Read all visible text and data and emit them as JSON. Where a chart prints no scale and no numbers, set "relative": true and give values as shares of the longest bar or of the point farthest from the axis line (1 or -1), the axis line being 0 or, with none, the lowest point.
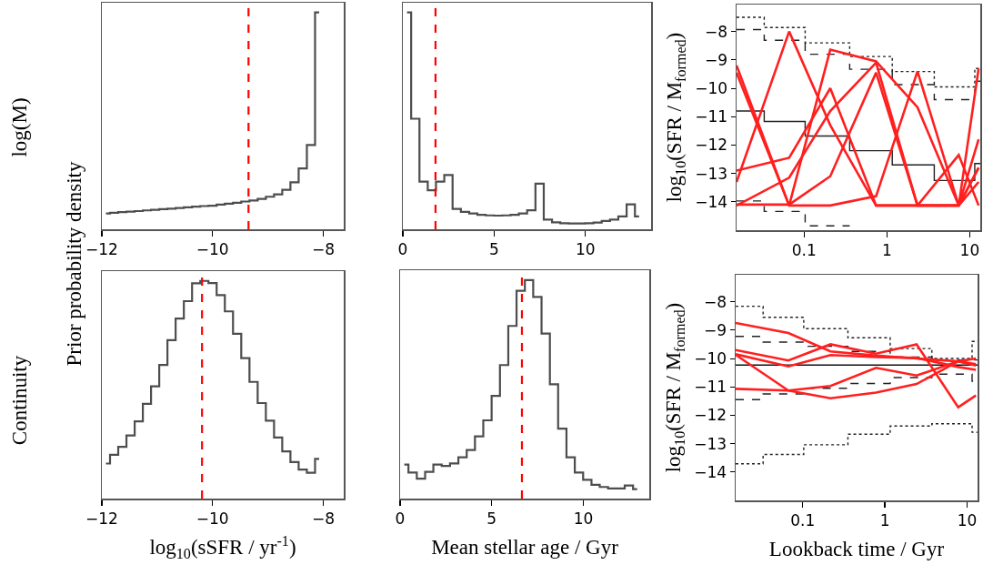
{
  "chart_data": [
    {
      "type": "step",
      "relative": true,
      "color": "#4d4d4d",
      "xlim": [
        -12,
        -7.63
      ],
      "xticks": [
        -12,
        -10,
        -8
      ],
      "x": [
        -11.926,
        -11.778,
        -11.63,
        -11.481,
        -11.333,
        -11.185,
        -11.037,
        -10.889,
        -10.741,
        -10.593,
        -10.444,
        -10.296,
        -10.148,
        -10,
        -9.852,
        -9.704,
        -9.556,
        -9.407,
        -9.259,
        -9.111,
        -8.963,
        -8.815,
        -8.667,
        -8.519,
        -8.37,
        -8.222,
        -8.074
      ],
      "values": [
        0.073,
        0.076,
        0.079,
        0.081,
        0.084,
        0.087,
        0.09,
        0.093,
        0.095,
        0.098,
        0.101,
        0.104,
        0.107,
        0.109,
        0.114,
        0.118,
        0.122,
        0.128,
        0.133,
        0.14,
        0.15,
        0.161,
        0.182,
        0.217,
        0.281,
        0.389,
        1
      ],
      "ref_lines": [
        {
          "axis": "x",
          "value": -9.35,
          "color": "#ff0000",
          "line_style": "dashed"
        }
      ],
      "annotations": [
        "log(M)",
        "Prior probability density"
      ]
    },
    {
      "type": "step",
      "relative": true,
      "color": "#4d4d4d",
      "xlim": [
        0,
        13.6
      ],
      "xticks": [
        0,
        5,
        10
      ],
      "x": [
        0.23,
        0.68,
        1.14,
        1.59,
        2.04,
        2.5,
        2.95,
        3.41,
        3.86,
        4.31,
        4.77,
        5.22,
        5.68,
        6.13,
        6.58,
        7.04,
        7.49,
        7.95,
        8.4,
        8.85,
        9.31,
        9.76,
        10.22,
        10.67,
        11.12,
        11.58,
        12.03,
        12.49,
        12.94
      ],
      "values": [
        1,
        0.51,
        0.22,
        0.18,
        0.22,
        0.25,
        0.094,
        0.08,
        0.073,
        0.067,
        0.064,
        0.063,
        0.064,
        0.067,
        0.073,
        0.088,
        0.21,
        0.045,
        0.032,
        0.028,
        0.027,
        0.027,
        0.028,
        0.031,
        0.038,
        0.045,
        0.059,
        0.115,
        0.059
      ],
      "ref_lines": [
        {
          "axis": "x",
          "value": 1.79,
          "color": "#ff0000",
          "line_style": "dashed"
        }
      ]
    },
    {
      "type": "line",
      "log": "x",
      "xlim": [
        0.0153,
        13.4
      ],
      "ylim": [
        -15,
        -7.05
      ],
      "xticks": [
        0.1,
        1,
        10
      ],
      "yticks": [
        -8,
        -9,
        -10,
        -11,
        -12,
        -13,
        -14
      ],
      "ylabel": "log$_{10}$(SFR / M$_{formed}$)",
      "series": [
        {
          "type": "step",
          "color": "#222222",
          "line_style": "solid",
          "x": [
            0.0153,
            0.033,
            0.103,
            0.355,
            1.16,
            3.73,
            11.5,
            13.4
          ],
          "values": [
            -10.8,
            -11.17,
            -11.68,
            -12.2,
            -12.7,
            -13.25,
            -12.65,
            -12.65
          ]
        },
        {
          "type": "step",
          "color": "#222222",
          "line_style": "dashed",
          "x": [
            0.0153,
            0.033,
            0.103,
            0.355,
            1.16,
            3.73,
            11.5,
            13.4
          ],
          "values": [
            -7.93,
            -8.31,
            -8.8,
            -9.33,
            -9.87,
            -10.4,
            -9.75,
            -9.75
          ]
        },
        {
          "type": "step",
          "color": "#222222",
          "line_style": "dashed",
          "x": [
            0.0153,
            0.033,
            0.103,
            0.355
          ],
          "values": [
            -13.97,
            -14.34,
            -14.85,
            -14.85
          ]
        },
        {
          "type": "step",
          "color": "#222222",
          "line_style": "dotted",
          "x": [
            0.0153,
            0.033,
            0.103,
            0.355,
            1.16,
            3.73,
            11.5,
            13.4
          ],
          "values": [
            -7.5,
            -7.86,
            -8.4,
            -8.88,
            -9.41,
            -9.95,
            -9.3,
            -9.3
          ]
        },
        {
          "type": "line",
          "color": "#ff1f1f",
          "line_style": "solid",
          "x": [
            0.0153,
            0.066,
            0.207,
            0.74,
            2.34,
            7.36,
            12.8
          ],
          "values": [
            -9.2,
            -14.13,
            -14.13,
            -13.8,
            -9.4,
            -14.13,
            -12.8
          ]
        },
        {
          "type": "line",
          "color": "#ff1f1f",
          "line_style": "solid",
          "x": [
            0.0153,
            0.066,
            0.207,
            0.74,
            2.34,
            7.36,
            12.8
          ],
          "values": [
            -9.45,
            -14.13,
            -8.64,
            -9.05,
            -10.67,
            -14.13,
            -11.8
          ]
        },
        {
          "type": "line",
          "color": "#ff1f1f",
          "line_style": "solid",
          "x": [
            0.0153,
            0.066,
            0.207,
            0.74,
            2.34,
            7.36,
            12.8
          ],
          "values": [
            -12.9,
            -12.45,
            -10,
            -14.13,
            -14.13,
            -12.35,
            -14.13
          ]
        },
        {
          "type": "line",
          "color": "#ff1f1f",
          "line_style": "solid",
          "x": [
            0.0153,
            0.066,
            0.207,
            0.74,
            2.34,
            7.36,
            12.8
          ],
          "values": [
            -14.13,
            -13.15,
            -10.8,
            -9.1,
            -14.13,
            -14.13,
            -9.3
          ]
        },
        {
          "type": "line",
          "color": "#ff1f1f",
          "line_style": "solid",
          "x": [
            0.0153,
            0.066,
            0.207,
            0.74,
            2.34,
            7.36,
            12.8
          ],
          "values": [
            -13.3,
            -8,
            -11.3,
            -14.13,
            -14.13,
            -14.13,
            -13.3
          ]
        },
        {
          "type": "line",
          "color": "#ff1f1f",
          "line_style": "solid",
          "x": [
            0.0153,
            0.066,
            0.207,
            0.74,
            2.34,
            7.36,
            12.8
          ],
          "values": [
            -14.1,
            -14.1,
            -13.1,
            -9.45,
            -14.13,
            -14.13,
            -12.8
          ]
        }
      ]
    },
    {
      "type": "step",
      "relative": true,
      "color": "#4d4d4d",
      "xlim": [
        -12,
        -7.63
      ],
      "xticks": [
        -12,
        -10,
        -8
      ],
      "xlabel": "log$_{10}$(sSFR / yr$^{-1}$)",
      "x": [
        -11.926,
        -11.778,
        -11.63,
        -11.481,
        -11.333,
        -11.185,
        -11.037,
        -10.889,
        -10.741,
        -10.593,
        -10.444,
        -10.296,
        -10.148,
        -10,
        -9.852,
        -9.704,
        -9.556,
        -9.407,
        -9.259,
        -9.111,
        -8.963,
        -8.815,
        -8.667,
        -8.519,
        -8.37,
        -8.222,
        -8.074
      ],
      "values": [
        0.161,
        0.201,
        0.238,
        0.29,
        0.355,
        0.435,
        0.516,
        0.614,
        0.728,
        0.827,
        0.907,
        0.989,
        1,
        0.99,
        0.935,
        0.86,
        0.757,
        0.645,
        0.536,
        0.439,
        0.358,
        0.281,
        0.217,
        0.168,
        0.133,
        0.119,
        0.182
      ],
      "ref_lines": [
        {
          "axis": "x",
          "value": -10.19,
          "color": "#ff0000",
          "line_style": "dashed"
        }
      ],
      "annotations": [
        "Continuity"
      ]
    },
    {
      "type": "step",
      "relative": true,
      "color": "#4d4d4d",
      "xlim": [
        0,
        13.6
      ],
      "xticks": [
        0,
        5,
        10
      ],
      "xlabel": "Mean stellar age / Gyr",
      "x": [
        0.23,
        0.68,
        1.14,
        1.59,
        2.04,
        2.5,
        2.95,
        3.41,
        3.86,
        4.31,
        4.77,
        5.22,
        5.68,
        6.13,
        6.58,
        7.04,
        7.49,
        7.95,
        8.4,
        8.85,
        9.31,
        9.76,
        10.22,
        10.67,
        11.12,
        11.58,
        12.03,
        12.49,
        12.94
      ],
      "values": [
        0.156,
        0.119,
        0.091,
        0.122,
        0.156,
        0.149,
        0.161,
        0.189,
        0.222,
        0.285,
        0.358,
        0.47,
        0.611,
        0.79,
        0.951,
        1,
        0.923,
        0.755,
        0.523,
        0.32,
        0.189,
        0.119,
        0.086,
        0.063,
        0.053,
        0.046,
        0.046,
        0.06,
        0.043
      ],
      "ref_lines": [
        {
          "axis": "x",
          "value": 6.65,
          "color": "#ff0000",
          "line_style": "dashed"
        }
      ]
    },
    {
      "type": "line",
      "log": "x",
      "xlim": [
        0.0153,
        13.4
      ],
      "ylim": [
        -15,
        -7.05
      ],
      "xticks": [
        0.1,
        1,
        10
      ],
      "yticks": [
        -8,
        -9,
        -10,
        -11,
        -12,
        -13,
        -14
      ],
      "ylabel": "log$_{10}$(SFR / M$_{formed}$)",
      "xlabel": "Lookback time / Gyr",
      "series": [
        {
          "type": "step",
          "color": "#111111",
          "line_style": "solid",
          "x": [
            0.0153,
            13.4
          ],
          "values": [
            -10.23,
            -10.23
          ]
        },
        {
          "type": "step",
          "color": "#222222",
          "line_style": "dashed",
          "x": [
            0.0153,
            0.033,
            0.103,
            0.355,
            1.16,
            3.73,
            11.5,
            13.4
          ],
          "values": [
            -9.22,
            -9.42,
            -9.57,
            -9.75,
            -9.95,
            -10.05,
            -10.05,
            -10.05
          ]
        },
        {
          "type": "step",
          "color": "#222222",
          "line_style": "dashed",
          "x": [
            0.0153,
            0.033,
            0.103,
            0.355,
            1.16,
            3.73,
            11.5,
            13.4
          ],
          "values": [
            -11.45,
            -11.25,
            -11.05,
            -10.88,
            -10.67,
            -10.55,
            -10.8,
            -10.8
          ]
        },
        {
          "type": "step",
          "color": "#222222",
          "line_style": "dotted",
          "x": [
            0.0153,
            0.033,
            0.103,
            0.355,
            1.16,
            3.73,
            11.5,
            13.4
          ],
          "values": [
            -8.16,
            -8.55,
            -8.95,
            -9.27,
            -9.65,
            -10,
            -9.4,
            -9.4
          ]
        },
        {
          "type": "step",
          "color": "#222222",
          "line_style": "dotted",
          "x": [
            0.0153,
            0.033,
            0.103,
            0.355,
            1.16,
            3.73,
            11.5,
            13.4
          ],
          "values": [
            -13.71,
            -13.38,
            -13.04,
            -12.67,
            -12.38,
            -12.3,
            -12.6,
            -12.6
          ]
        },
        {
          "type": "line",
          "color": "#ff1f1f",
          "line_style": "solid",
          "x": [
            0.0153,
            0.067,
            0.218,
            0.78,
            2.43,
            7.8,
            12.8
          ],
          "values": [
            -8.75,
            -9.1,
            -9.75,
            -9.9,
            -10,
            -10.1,
            -10
          ]
        },
        {
          "type": "line",
          "color": "#ff1f1f",
          "line_style": "solid",
          "x": [
            0.0153,
            0.067,
            0.218,
            0.78,
            2.43,
            7.8,
            12.8
          ],
          "values": [
            -9.7,
            -10.07,
            -9.5,
            -9.83,
            -9.5,
            -11.72,
            -11.3
          ]
        },
        {
          "type": "line",
          "color": "#ff1f1f",
          "line_style": "solid",
          "x": [
            0.0153,
            0.067,
            0.218,
            0.78,
            2.43,
            7.8,
            12.8
          ],
          "values": [
            -9.85,
            -10.28,
            -9.88,
            -9.95,
            -9.98,
            -10.3,
            -10.4
          ]
        },
        {
          "type": "line",
          "color": "#ff1f1f",
          "line_style": "solid",
          "x": [
            0.0153,
            0.067,
            0.218,
            0.78,
            2.43,
            7.8,
            12.8
          ],
          "values": [
            -9.87,
            -11.13,
            -10.97,
            -10.33,
            -10.6,
            -10.1,
            -10.2
          ]
        },
        {
          "type": "line",
          "color": "#ff1f1f",
          "line_style": "solid",
          "x": [
            0.0153,
            0.067,
            0.218,
            0.78,
            2.43,
            7.8,
            12.8
          ],
          "values": [
            -11.07,
            -11.13,
            -11.4,
            -11.2,
            -10.9,
            -10.1,
            -10.25
          ]
        }
      ]
    }
  ]
}
